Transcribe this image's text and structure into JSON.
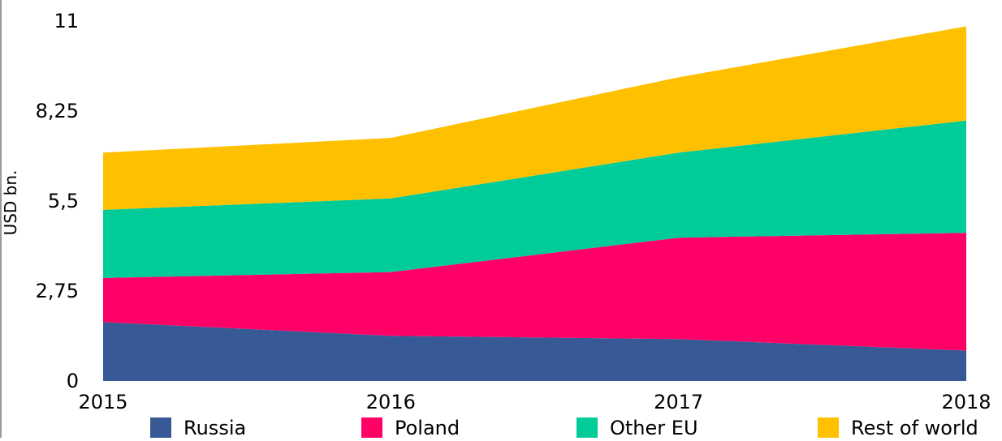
{
  "chart_data": {
    "type": "area",
    "stacked": true,
    "title": "",
    "xlabel": "",
    "ylabel": "USD bn.",
    "categories": [
      "2015",
      "2016",
      "2017",
      "2018"
    ],
    "y_ticks": [
      "0",
      "2,75",
      "5,5",
      "8,25",
      "11"
    ],
    "ylim": [
      0,
      11
    ],
    "grid": false,
    "legend_position": "bottom",
    "series": [
      {
        "name": "Russia",
        "color": "#375A96",
        "values": [
          1.8,
          1.38,
          1.28,
          0.93
        ]
      },
      {
        "name": "Poland",
        "color": "#FF0066",
        "values": [
          1.35,
          1.95,
          3.1,
          3.6
        ]
      },
      {
        "name": "Other EU",
        "color": "#00CC99",
        "values": [
          2.08,
          2.25,
          2.6,
          3.43
        ]
      },
      {
        "name": "Rest of world",
        "color": "#FFC000",
        "values": [
          1.75,
          1.85,
          2.3,
          2.88
        ]
      }
    ]
  }
}
